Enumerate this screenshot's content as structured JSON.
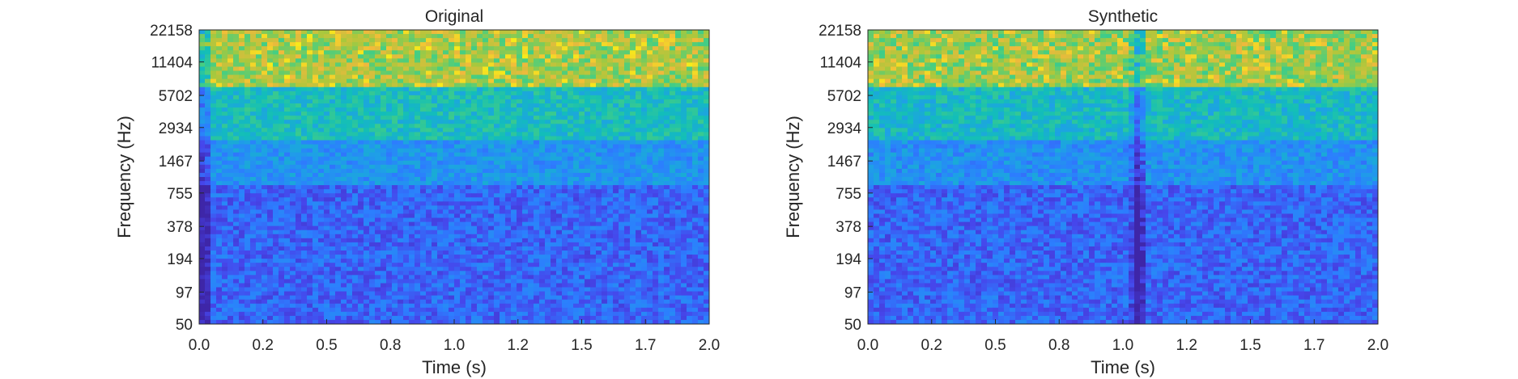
{
  "chart_data": [
    {
      "type": "heatmap",
      "title": "Original",
      "xlabel": "Time (s)",
      "ylabel": "Frequency (Hz)",
      "xlim": [
        0,
        2.0
      ],
      "ylim": [
        50,
        22158
      ],
      "yscale": "log",
      "xticks": [
        "0.0",
        "0.2",
        "0.5",
        "0.8",
        "1.0",
        "1.2",
        "1.5",
        "1.7",
        "2.0"
      ],
      "yticks": [
        "22158",
        "11404",
        "5702",
        "2934",
        "1467",
        "755",
        "378",
        "194",
        "97",
        "50"
      ],
      "colormap": "parula",
      "bands": [
        {
          "from_hz": 6500,
          "to_hz": 22158,
          "level": 0.72
        },
        {
          "from_hz": 2300,
          "to_hz": 6500,
          "level": 0.5
        },
        {
          "from_hz": 900,
          "to_hz": 2300,
          "level": 0.33
        },
        {
          "from_hz": 50,
          "to_hz": 900,
          "level": 0.2
        }
      ],
      "dark_columns_s": [
        0.02
      ]
    },
    {
      "type": "heatmap",
      "title": "Synthetic",
      "xlabel": "Time (s)",
      "ylabel": "Frequency (Hz)",
      "xlim": [
        0,
        2.0
      ],
      "ylim": [
        50,
        22158
      ],
      "yscale": "log",
      "xticks": [
        "0.0",
        "0.2",
        "0.5",
        "0.8",
        "1.0",
        "1.2",
        "1.5",
        "1.7",
        "2.0"
      ],
      "yticks": [
        "22158",
        "11404",
        "5702",
        "2934",
        "1467",
        "755",
        "378",
        "194",
        "97",
        "50"
      ],
      "colormap": "parula",
      "bands": [
        {
          "from_hz": 6500,
          "to_hz": 22158,
          "level": 0.7
        },
        {
          "from_hz": 2300,
          "to_hz": 6500,
          "level": 0.48
        },
        {
          "from_hz": 900,
          "to_hz": 2300,
          "level": 0.32
        },
        {
          "from_hz": 50,
          "to_hz": 900,
          "level": 0.2
        }
      ],
      "dark_columns_s": [
        1.06
      ]
    }
  ],
  "colors": {
    "background": "#ffffff",
    "axis": "#262626",
    "parula_low": "#3e26a8",
    "parula_mid": "#12beb9",
    "parula_high": "#f9fb0e"
  }
}
